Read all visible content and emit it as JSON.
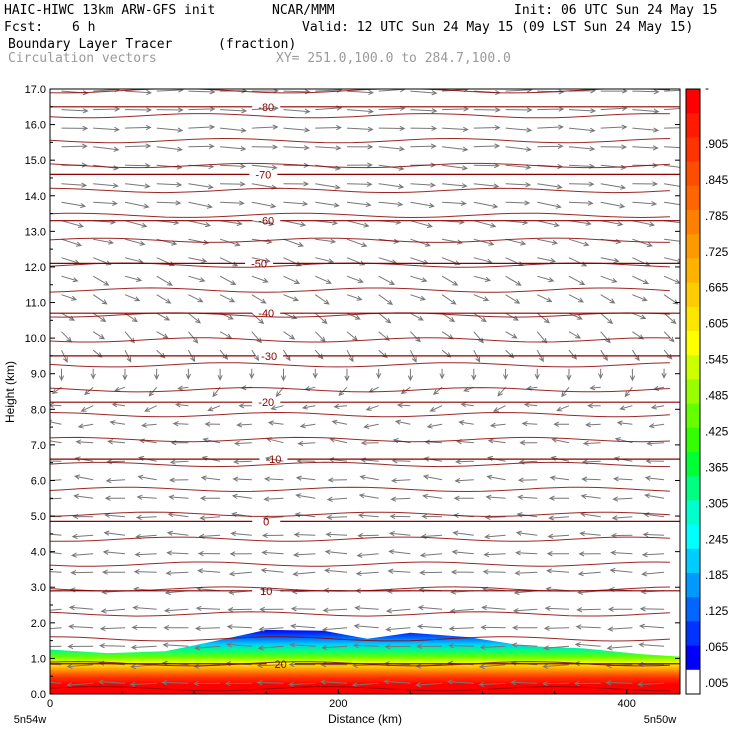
{
  "header": {
    "model": "HAIC-HIWC 13km ARW-GFS init",
    "org": "NCAR/MMM",
    "init": "Init: 06 UTC Sun 24 May 15",
    "fcst_label": "Fcst:",
    "fcst_value": "6 h",
    "valid": "Valid: 12 UTC Sun 24 May 15 (09 LST Sun 24 May 15)",
    "field1": "Boundary Layer Tracer",
    "field1_units": "(fraction)",
    "field2": "Circulation vectors",
    "xsec": "XY= 251.0,100.0 to 284.7,100.0"
  },
  "chart_data": {
    "type": "heatmap",
    "ylabel": "Height (km)",
    "xlabel": "Distance (km)",
    "ylim": [
      0,
      17
    ],
    "xlim": [
      0,
      437
    ],
    "y_ticks": [
      "0.0",
      "1.0",
      "2.0",
      "3.0",
      "4.0",
      "5.0",
      "6.0",
      "7.0",
      "8.0",
      "9.0",
      "10.0",
      "11.0",
      "12.0",
      "13.0",
      "14.0",
      "15.0",
      "16.0",
      "17.0"
    ],
    "x_ticks": [
      {
        "v": 0,
        "label": "0"
      },
      {
        "v": 200,
        "label": "200"
      },
      {
        "v": 400,
        "label": "400"
      }
    ],
    "x_end_labels": [
      "5n54w",
      "5n50w"
    ],
    "colorbar": {
      "labels": [
        "-",
        ".905",
        ".845",
        ".785",
        ".725",
        ".665",
        ".605",
        ".545",
        ".485",
        ".425",
        ".365",
        ".305",
        ".245",
        ".185",
        ".125",
        ".065",
        ".005"
      ],
      "colors": [
        "#ff0000",
        "#ff1a00",
        "#ff3300",
        "#ff4d00",
        "#ff6600",
        "#ff8000",
        "#ff9900",
        "#ffb300",
        "#ffcc00",
        "#ffe600",
        "#ffff00",
        "#ccff00",
        "#99ff00",
        "#66ff00",
        "#33ff00",
        "#00ff33",
        "#00ff80",
        "#00ffcc",
        "#00ffff",
        "#00ccff",
        "#0099ff",
        "#0066ff",
        "#0033ff",
        "#0000ff",
        "#ffffff"
      ]
    },
    "temperature_contours": [
      {
        "label": "20",
        "height_km": 0.85
      },
      {
        "label": "10",
        "height_km": 2.9
      },
      {
        "label": "0",
        "height_km": 4.85
      },
      {
        "label": "-10",
        "height_km": 6.6
      },
      {
        "label": "-20",
        "height_km": 8.2
      },
      {
        "label": "-30",
        "height_km": 9.5
      },
      {
        "label": "-40",
        "height_km": 10.7
      },
      {
        "label": "-50",
        "height_km": 12.1
      },
      {
        "label": "-60",
        "height_km": 13.3
      },
      {
        "label": "-70",
        "height_km": 14.6
      },
      {
        "label": "-80",
        "height_km": 16.5
      }
    ],
    "bl_top_km": [
      {
        "x": 0,
        "y": 1.25
      },
      {
        "x": 40,
        "y": 1.15
      },
      {
        "x": 80,
        "y": 1.2
      },
      {
        "x": 110,
        "y": 1.45
      },
      {
        "x": 150,
        "y": 1.8
      },
      {
        "x": 190,
        "y": 1.78
      },
      {
        "x": 220,
        "y": 1.55
      },
      {
        "x": 250,
        "y": 1.72
      },
      {
        "x": 290,
        "y": 1.6
      },
      {
        "x": 330,
        "y": 1.35
      },
      {
        "x": 370,
        "y": 1.28
      },
      {
        "x": 410,
        "y": 1.12
      },
      {
        "x": 437,
        "y": 1.05
      }
    ],
    "wind_profile": [
      {
        "height_km": 0.5,
        "u": -1,
        "v": 0
      },
      {
        "height_km": 3,
        "u": -0.8,
        "v": 0
      },
      {
        "height_km": 7,
        "u": -0.5,
        "v": 0.05
      },
      {
        "height_km": 10,
        "u": 0.2,
        "v": -0.2
      },
      {
        "height_km": 12,
        "u": 0.5,
        "v": -0.2
      },
      {
        "height_km": 14,
        "u": 0.9,
        "v": -0.1
      },
      {
        "height_km": 16.5,
        "u": 1,
        "v": 0
      }
    ]
  }
}
